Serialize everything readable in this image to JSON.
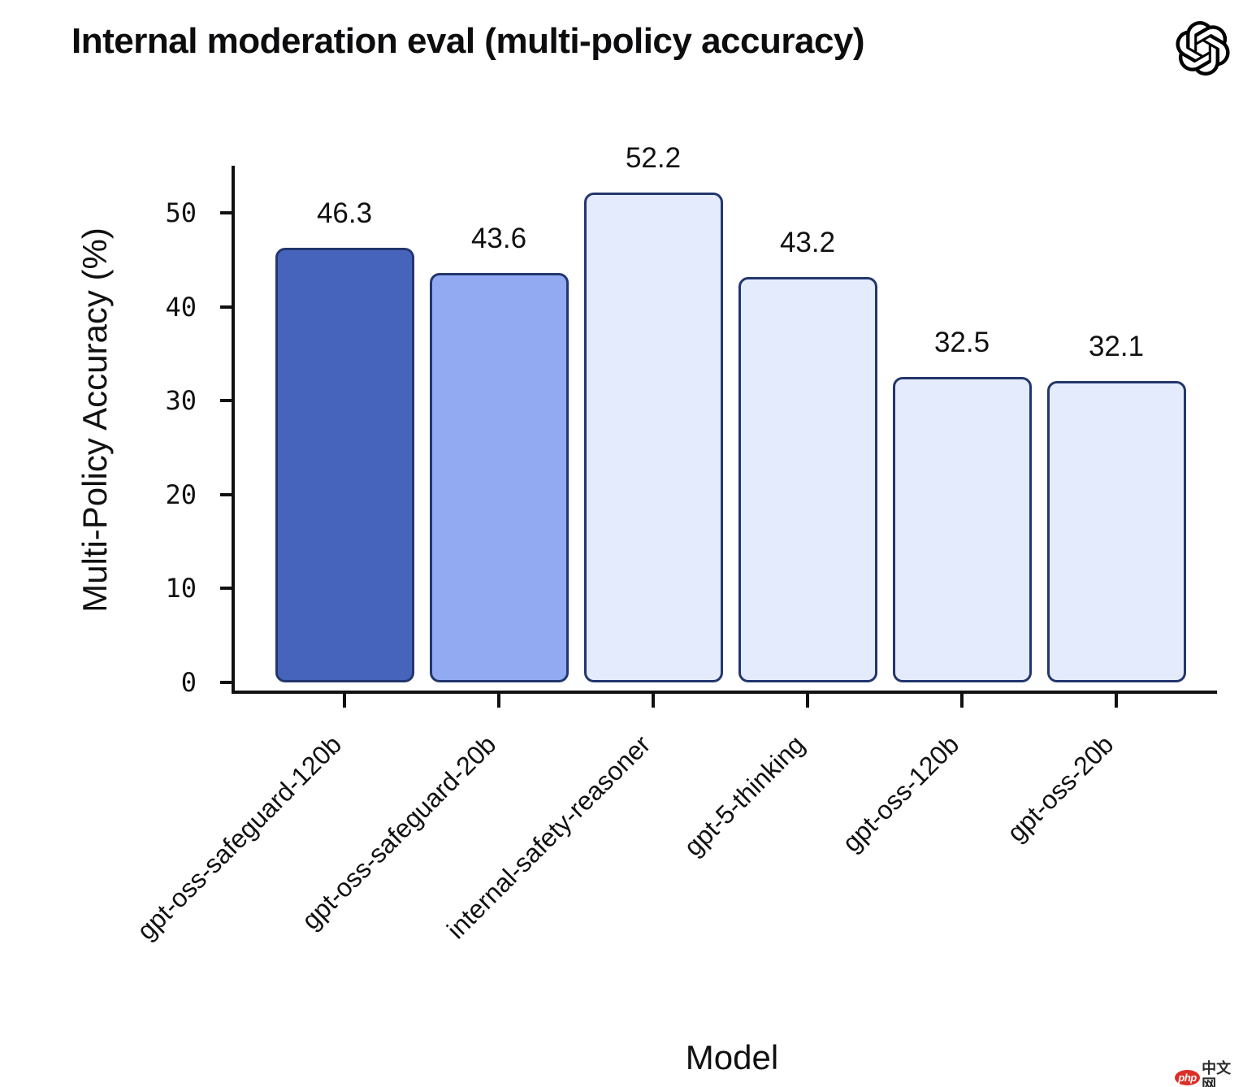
{
  "title": "Internal moderation eval (multi-policy accuracy)",
  "logo": {
    "name": "openai-logo",
    "color": "#000000"
  },
  "chart_data": {
    "type": "bar",
    "title": "Internal moderation eval (multi-policy accuracy)",
    "categories": [
      "gpt-oss-safeguard-120b",
      "gpt-oss-safeguard-20b",
      "internal-safety-reasoner",
      "gpt-5-thinking",
      "gpt-oss-120b",
      "gpt-oss-20b"
    ],
    "values": [
      46.3,
      43.6,
      52.2,
      43.2,
      32.5,
      32.1
    ],
    "value_labels": [
      "46.3",
      "43.6",
      "52.2",
      "43.2",
      "32.5",
      "32.1"
    ],
    "xlabel": "Model",
    "ylabel": "Multi-Policy Accuracy (%)",
    "yticks": [
      0,
      10,
      20,
      30,
      40,
      50
    ],
    "ytick_labels": [
      "0",
      "10",
      "20",
      "30",
      "40",
      "50"
    ],
    "ylim": [
      0,
      55
    ],
    "grid": false,
    "legend": false,
    "bar_colors": [
      "#4664bb",
      "#92aaf1",
      "#e4ebfc",
      "#e4ebfc",
      "#e4ebfc",
      "#e4ebfc"
    ],
    "bar_edge_color": "#23366e",
    "axis_color": "#111111"
  },
  "watermark": {
    "badge": "php",
    "text": "中文网",
    "badge_color": "#dd2f26"
  }
}
